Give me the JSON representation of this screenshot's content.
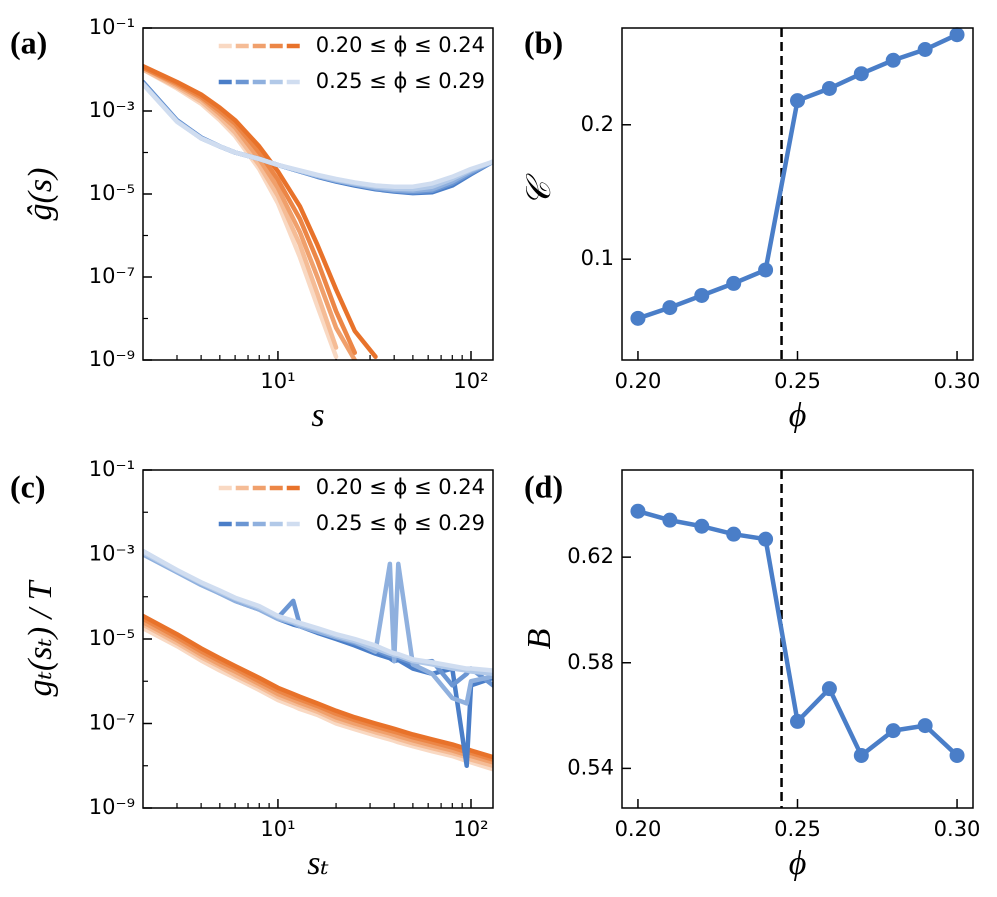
{
  "chart_data": [
    {
      "type": "line",
      "panel_label": "(a)",
      "x_label": "s",
      "y_label": "ĝ(s)",
      "xscale": "log",
      "yscale": "log",
      "xlim": [
        2,
        130
      ],
      "ylim": [
        1e-09,
        0.1
      ],
      "xticks": [
        {
          "value": 10,
          "label": "10¹"
        },
        {
          "value": 100,
          "label": "10²"
        }
      ],
      "xminorticks": [
        3,
        4,
        5,
        6,
        7,
        8,
        9,
        20,
        30,
        40,
        50,
        60,
        70,
        80,
        90
      ],
      "yticks": [
        {
          "value": 0.1,
          "label": "10⁻¹"
        },
        {
          "value": 0.001,
          "label": "10⁻³"
        },
        {
          "value": 1e-05,
          "label": "10⁻⁵"
        },
        {
          "value": 1e-07,
          "label": "10⁻⁷"
        },
        {
          "value": 1e-09,
          "label": "10⁻⁹"
        }
      ],
      "yminorticks": [
        0.01,
        0.0001,
        1e-06,
        1e-08
      ],
      "legend": "upper right",
      "x": [
        2,
        3,
        4,
        5,
        6,
        8,
        10,
        13,
        16,
        20,
        25,
        32,
        40,
        50,
        63,
        80,
        100,
        130
      ],
      "groups": [
        {
          "name": "0.20 ≤ ϕ ≤ 0.24",
          "series": [
            {
              "color": "#f9d9c3",
              "values": [
                0.01,
                0.0035,
                0.0015,
                0.0006,
                0.00025,
                4e-05,
                6e-06,
                3e-07,
                2e-08,
                1.2e-09,
                null,
                null,
                null,
                null,
                null,
                null,
                null,
                null
              ]
            },
            {
              "color": "#f5bc96",
              "values": [
                0.01,
                0.0038,
                0.0017,
                0.0007,
                0.0003,
                5e-05,
                9e-06,
                6e-07,
                4e-08,
                2e-09,
                null,
                null,
                null,
                null,
                null,
                null,
                null,
                null
              ]
            },
            {
              "color": "#f0a06c",
              "values": [
                0.011,
                0.0042,
                0.002,
                0.00085,
                0.0004,
                7e-05,
                1.4e-05,
                1.2e-06,
                1e-07,
                6e-09,
                1e-09,
                null,
                null,
                null,
                null,
                null,
                null,
                null
              ]
            },
            {
              "color": "#ec8646",
              "values": [
                0.011,
                0.0046,
                0.0022,
                0.001,
                0.0005,
                0.0001,
                2.2e-05,
                2.5e-06,
                2.5e-07,
                1.5e-08,
                1.5e-09,
                null,
                null,
                null,
                null,
                null,
                null,
                null
              ]
            },
            {
              "color": "#e8722a",
              "values": [
                0.012,
                0.005,
                0.0025,
                0.0012,
                0.0006,
                0.00014,
                3.5e-05,
                5e-06,
                6e-07,
                5e-08,
                5e-09,
                1.2e-09,
                null,
                null,
                null,
                null,
                null,
                null
              ]
            }
          ]
        },
        {
          "name": "0.25 ≤ ϕ ≤ 0.29",
          "series": [
            {
              "color": "#4a7ec8",
              "values": [
                0.005,
                0.0006,
                0.00023,
                0.00014,
                0.0001,
                7e-05,
                5e-05,
                3.5e-05,
                2.6e-05,
                2e-05,
                1.6e-05,
                1.3e-05,
                1.15e-05,
                1.05e-05,
                1.1e-05,
                1.6e-05,
                3e-05,
                6e-05
              ]
            },
            {
              "color": "#6b96d3",
              "values": [
                0.0048,
                0.00058,
                0.00023,
                0.00014,
                0.0001,
                7e-05,
                5e-05,
                3.5e-05,
                2.7e-05,
                2.1e-05,
                1.7e-05,
                1.35e-05,
                1.2e-05,
                1.1e-05,
                1.2e-05,
                1.8e-05,
                3.2e-05,
                6e-05
              ]
            },
            {
              "color": "#8fb0de",
              "values": [
                0.0046,
                0.00057,
                0.00022,
                0.00014,
                0.0001,
                7e-05,
                5e-05,
                3.6e-05,
                2.7e-05,
                2.1e-05,
                1.7e-05,
                1.4e-05,
                1.25e-05,
                1.2e-05,
                1.3e-05,
                2e-05,
                3.5e-05,
                6e-05
              ]
            },
            {
              "color": "#b2c9e8",
              "values": [
                0.0045,
                0.00056,
                0.00022,
                0.00014,
                0.0001,
                7e-05,
                5e-05,
                3.6e-05,
                2.8e-05,
                2.2e-05,
                1.8e-05,
                1.5e-05,
                1.35e-05,
                1.3e-05,
                1.5e-05,
                2.3e-05,
                3.8e-05,
                6e-05
              ]
            },
            {
              "color": "#d0ddf0",
              "values": [
                0.0044,
                0.00055,
                0.00022,
                0.00014,
                0.0001,
                7e-05,
                5e-05,
                3.7e-05,
                2.9e-05,
                2.3e-05,
                1.9e-05,
                1.6e-05,
                1.5e-05,
                1.5e-05,
                1.8e-05,
                2.6e-05,
                4e-05,
                6e-05
              ]
            }
          ]
        }
      ]
    },
    {
      "type": "line",
      "panel_label": "(b)",
      "x_label": "ϕ",
      "y_label": "𝒞",
      "xlim": [
        0.195,
        0.305
      ],
      "ylim": [
        0.025,
        0.272
      ],
      "xticks": [
        {
          "value": 0.2,
          "label": "0.20"
        },
        {
          "value": 0.25,
          "label": "0.25"
        },
        {
          "value": 0.3,
          "label": "0.30"
        }
      ],
      "yticks": [
        0.1,
        0.2
      ],
      "vline": 0.245,
      "color": "#4a7ec8",
      "markers": true,
      "x": [
        0.2,
        0.21,
        0.22,
        0.23,
        0.24,
        0.25,
        0.26,
        0.27,
        0.28,
        0.29,
        0.3
      ],
      "values": [
        0.056,
        0.064,
        0.073,
        0.082,
        0.092,
        0.218,
        0.227,
        0.238,
        0.248,
        0.256,
        0.267
      ]
    },
    {
      "type": "line",
      "panel_label": "(c)",
      "x_label": "sₜ",
      "y_label": "gₜ(sₜ) / T",
      "xscale": "log",
      "yscale": "log",
      "xlim": [
        2,
        130
      ],
      "ylim": [
        1e-09,
        0.1
      ],
      "xticks": [
        {
          "value": 10,
          "label": "10¹"
        },
        {
          "value": 100,
          "label": "10²"
        }
      ],
      "xminorticks": [
        3,
        4,
        5,
        6,
        7,
        8,
        9,
        20,
        30,
        40,
        50,
        60,
        70,
        80,
        90
      ],
      "yticks": [
        {
          "value": 0.1,
          "label": "10⁻¹"
        },
        {
          "value": 0.001,
          "label": "10⁻³"
        },
        {
          "value": 1e-05,
          "label": "10⁻⁵"
        },
        {
          "value": 1e-07,
          "label": "10⁻⁷"
        },
        {
          "value": 1e-09,
          "label": "10⁻⁹"
        }
      ],
      "yminorticks": [
        0.01,
        0.0001,
        1e-06,
        1e-08
      ],
      "legend": "upper right",
      "x": [
        2,
        3,
        4,
        5,
        6,
        8,
        10,
        12,
        13,
        16,
        20,
        25,
        32,
        38,
        40,
        42,
        50,
        63,
        80,
        95,
        100,
        130
      ],
      "groups": [
        {
          "name": "0.20 ≤ ϕ ≤ 0.24",
          "series": [
            {
              "color": "#f9d9c3",
              "values": [
                1.8e-05,
                6.8e-06,
                3.1e-06,
                1.8e-06,
                1.2e-06,
                6.2e-07,
                3.6e-07,
                2.6e-07,
                2.2e-07,
                1.6e-07,
                1e-07,
                7.3e-08,
                5.2e-08,
                4.2e-08,
                3.9e-08,
                3.6e-08,
                2.9e-08,
                2.2e-08,
                1.7e-08,
                1.3e-08,
                1.2e-08,
                8.3e-09
              ]
            },
            {
              "color": "#f5bc96",
              "values": [
                2.2e-05,
                8e-06,
                3.7e-06,
                2.2e-06,
                1.4e-06,
                7.4e-07,
                4.3e-07,
                3.1e-07,
                2.7e-07,
                1.9e-07,
                1.2e-07,
                8.7e-08,
                6.2e-08,
                5e-08,
                4.6e-08,
                4.3e-08,
                3.4e-08,
                2.6e-08,
                2e-08,
                1.6e-08,
                1.4e-08,
                1e-08
              ]
            },
            {
              "color": "#f0a06c",
              "values": [
                2.5e-05,
                9.4e-06,
                4.3e-06,
                2.5e-06,
                1.7e-06,
                8.6e-07,
                5e-07,
                3.6e-07,
                3.1e-07,
                2.2e-07,
                1.4e-07,
                1e-07,
                7.2e-08,
                5.8e-08,
                5.4e-08,
                5e-08,
                4e-08,
                3e-08,
                2.3e-08,
                1.8e-08,
                1.7e-08,
                1.2e-08
              ]
            },
            {
              "color": "#ec8646",
              "values": [
                3e-05,
                1.1e-05,
                5.1e-06,
                3e-06,
                2e-06,
                1e-06,
                6e-07,
                4.2e-07,
                3.7e-07,
                2.6e-07,
                1.7e-07,
                1.2e-07,
                8.5e-08,
                6.8e-08,
                6.4e-08,
                6e-08,
                4.7e-08,
                3.6e-08,
                2.7e-08,
                2.1e-08,
                2e-08,
                1.4e-08
              ]
            },
            {
              "color": "#e8722a",
              "values": [
                3.5e-05,
                1.3e-05,
                6e-06,
                3.5e-06,
                2.3e-06,
                1.2e-06,
                7e-07,
                5e-07,
                4.3e-07,
                3e-07,
                2e-07,
                1.4e-07,
                1e-07,
                8e-08,
                7.5e-08,
                7e-08,
                5.5e-08,
                4.2e-08,
                3.2e-08,
                2.5e-08,
                2.3e-08,
                1.6e-08
              ]
            }
          ]
        },
        {
          "name": "0.25 ≤ ϕ ≤ 0.29",
          "series": [
            {
              "color": "#4a7ec8",
              "values": [
                0.0012,
                0.00042,
                0.00021,
                0.00012,
                8e-05,
                5e-05,
                3e-05,
                2.2e-05,
                2e-05,
                1.4e-05,
                1e-05,
                7e-06,
                4.5e-06,
                3.5e-06,
                3e-06,
                3.2e-06,
                2e-06,
                1.5e-06,
                2e-06,
                1e-08,
                8e-07,
                1.2e-06
              ]
            },
            {
              "color": "#6b96d3",
              "values": [
                0.0011,
                0.0004,
                0.0002,
                0.00013,
                8.5e-05,
                5.2e-05,
                3.2e-05,
                8e-05,
                2.1e-05,
                1.6e-05,
                1.1e-05,
                8e-06,
                5.5e-06,
                4e-06,
                3.8e-06,
                3.6e-06,
                2.7e-06,
                3e-06,
                8e-07,
                1.5e-06,
                2e-06,
                8e-07
              ]
            },
            {
              "color": "#8fb0de",
              "values": [
                0.001,
                0.00038,
                0.00019,
                0.00012,
                8e-05,
                5e-05,
                3e-05,
                2.4e-05,
                2e-05,
                1.5e-05,
                1.1e-05,
                8.5e-06,
                5e-06,
                0.0006,
                3e-06,
                0.0006,
                2.5e-06,
                1.5e-06,
                4e-07,
                3e-07,
                1e-06,
                1.3e-06
              ]
            },
            {
              "color": "#b2c9e8",
              "values": [
                0.0011,
                0.00041,
                0.00021,
                0.00013,
                9e-05,
                5.5e-05,
                3.3e-05,
                2.5e-05,
                2.2e-05,
                1.7e-05,
                1.2e-05,
                9e-06,
                6e-06,
                4.5e-06,
                4.2e-06,
                4e-06,
                3e-06,
                2.5e-06,
                2e-06,
                1.8e-06,
                1.7e-06,
                1.5e-06
              ]
            },
            {
              "color": "#d0ddf0",
              "values": [
                0.0012,
                0.00043,
                0.00022,
                0.00014,
                9.5e-05,
                6e-05,
                3.5e-05,
                2.7e-05,
                2.4e-05,
                1.8e-05,
                1.3e-05,
                1e-05,
                7e-06,
                5e-06,
                4.6e-06,
                4.4e-06,
                3.3e-06,
                2.8e-06,
                2.3e-06,
                2e-06,
                2e-06,
                1.8e-06
              ]
            }
          ]
        }
      ]
    },
    {
      "type": "line",
      "panel_label": "(d)",
      "x_label": "ϕ",
      "y_label": "B",
      "xlim": [
        0.195,
        0.305
      ],
      "ylim": [
        0.525,
        0.653
      ],
      "xticks": [
        {
          "value": 0.2,
          "label": "0.20"
        },
        {
          "value": 0.25,
          "label": "0.25"
        },
        {
          "value": 0.3,
          "label": "0.30"
        }
      ],
      "yticks": [
        0.54,
        0.58,
        0.62
      ],
      "vline": 0.245,
      "color": "#4a7ec8",
      "markers": true,
      "x": [
        0.2,
        0.21,
        0.22,
        0.23,
        0.24,
        0.25,
        0.26,
        0.27,
        0.28,
        0.29,
        0.3
      ],
      "values": [
        0.6374,
        0.634,
        0.6317,
        0.6287,
        0.6268,
        0.5578,
        0.5702,
        0.5449,
        0.5543,
        0.5562,
        0.5449
      ]
    }
  ]
}
